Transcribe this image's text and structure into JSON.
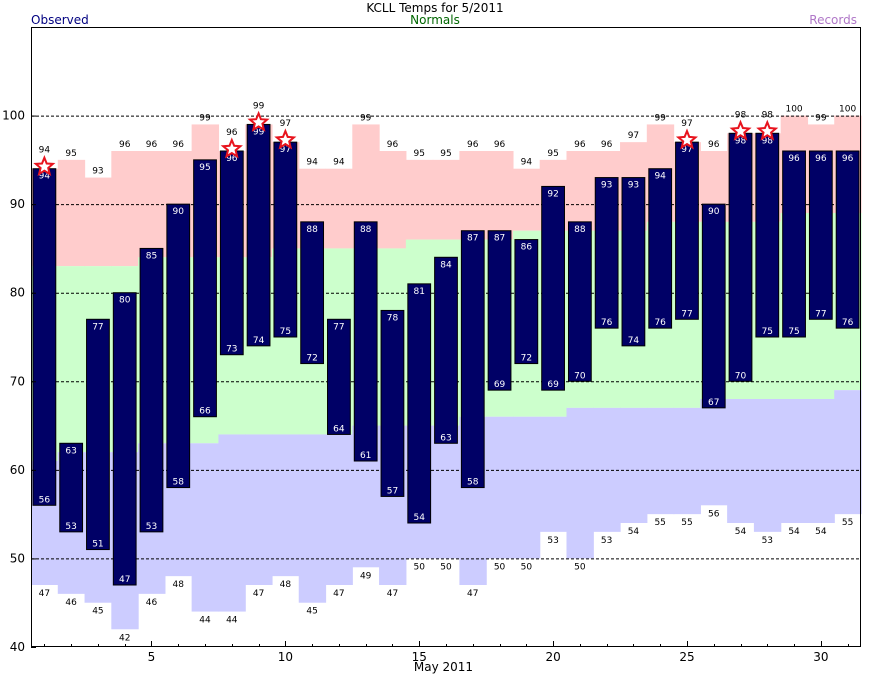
{
  "chart_data": {
    "type": "bar",
    "title": "KCLL Temps for 5/2011",
    "xlabel": "May 2011",
    "legend": {
      "observed": "Observed",
      "normals": "Normals",
      "records": "Records"
    },
    "ylim": [
      40,
      110
    ],
    "yticks": [
      40,
      50,
      60,
      70,
      80,
      90,
      100
    ],
    "xticks": [
      5,
      10,
      15,
      20,
      25,
      30
    ],
    "days": [
      1,
      2,
      3,
      4,
      5,
      6,
      7,
      8,
      9,
      10,
      11,
      12,
      13,
      14,
      15,
      16,
      17,
      18,
      19,
      20,
      21,
      22,
      23,
      24,
      25,
      26,
      27,
      28,
      29,
      30,
      31
    ],
    "observed_high": [
      94,
      63,
      77,
      80,
      85,
      90,
      95,
      96,
      99,
      97,
      88,
      77,
      88,
      78,
      81,
      84,
      87,
      87,
      86,
      92,
      88,
      93,
      93,
      94,
      97,
      90,
      98,
      98,
      96,
      96,
      96
    ],
    "observed_low": [
      56,
      53,
      51,
      47,
      53,
      58,
      66,
      73,
      74,
      75,
      72,
      64,
      61,
      57,
      54,
      63,
      58,
      69,
      72,
      69,
      70,
      76,
      74,
      76,
      77,
      67,
      70,
      75,
      75,
      77,
      76
    ],
    "normal_high": [
      83,
      83,
      83,
      83,
      84,
      84,
      84,
      84,
      84,
      85,
      85,
      85,
      85,
      85,
      86,
      86,
      86,
      86,
      87,
      87,
      87,
      87,
      87,
      88,
      88,
      88,
      88,
      88,
      89,
      89,
      89
    ],
    "normal_low": [
      61,
      62,
      62,
      62,
      63,
      63,
      63,
      64,
      64,
      64,
      64,
      64,
      65,
      65,
      65,
      65,
      66,
      66,
      66,
      66,
      67,
      67,
      67,
      67,
      67,
      68,
      68,
      68,
      68,
      68,
      69
    ],
    "record_high": [
      94,
      95,
      93,
      96,
      96,
      96,
      99,
      96,
      99,
      97,
      94,
      94,
      99,
      96,
      95,
      95,
      96,
      96,
      94,
      95,
      96,
      96,
      97,
      99,
      97,
      96,
      98,
      98,
      100,
      99,
      100
    ],
    "record_low": [
      47,
      46,
      45,
      42,
      46,
      48,
      44,
      44,
      47,
      48,
      45,
      47,
      49,
      47,
      50,
      50,
      47,
      50,
      50,
      53,
      50,
      53,
      54,
      55,
      55,
      56,
      54,
      53,
      54,
      54,
      55
    ],
    "record_high_set_days": [
      1,
      8,
      9,
      10,
      25,
      27,
      28
    ],
    "colors": {
      "observed": "#000066",
      "observed_text": "#000080",
      "normals_text": "#006600",
      "records_text": "#b078c8",
      "above_normal": "#ffcccc",
      "normal": "#ccffcc",
      "below_normal": "#ccccff",
      "record_star": "#e8141e"
    }
  }
}
